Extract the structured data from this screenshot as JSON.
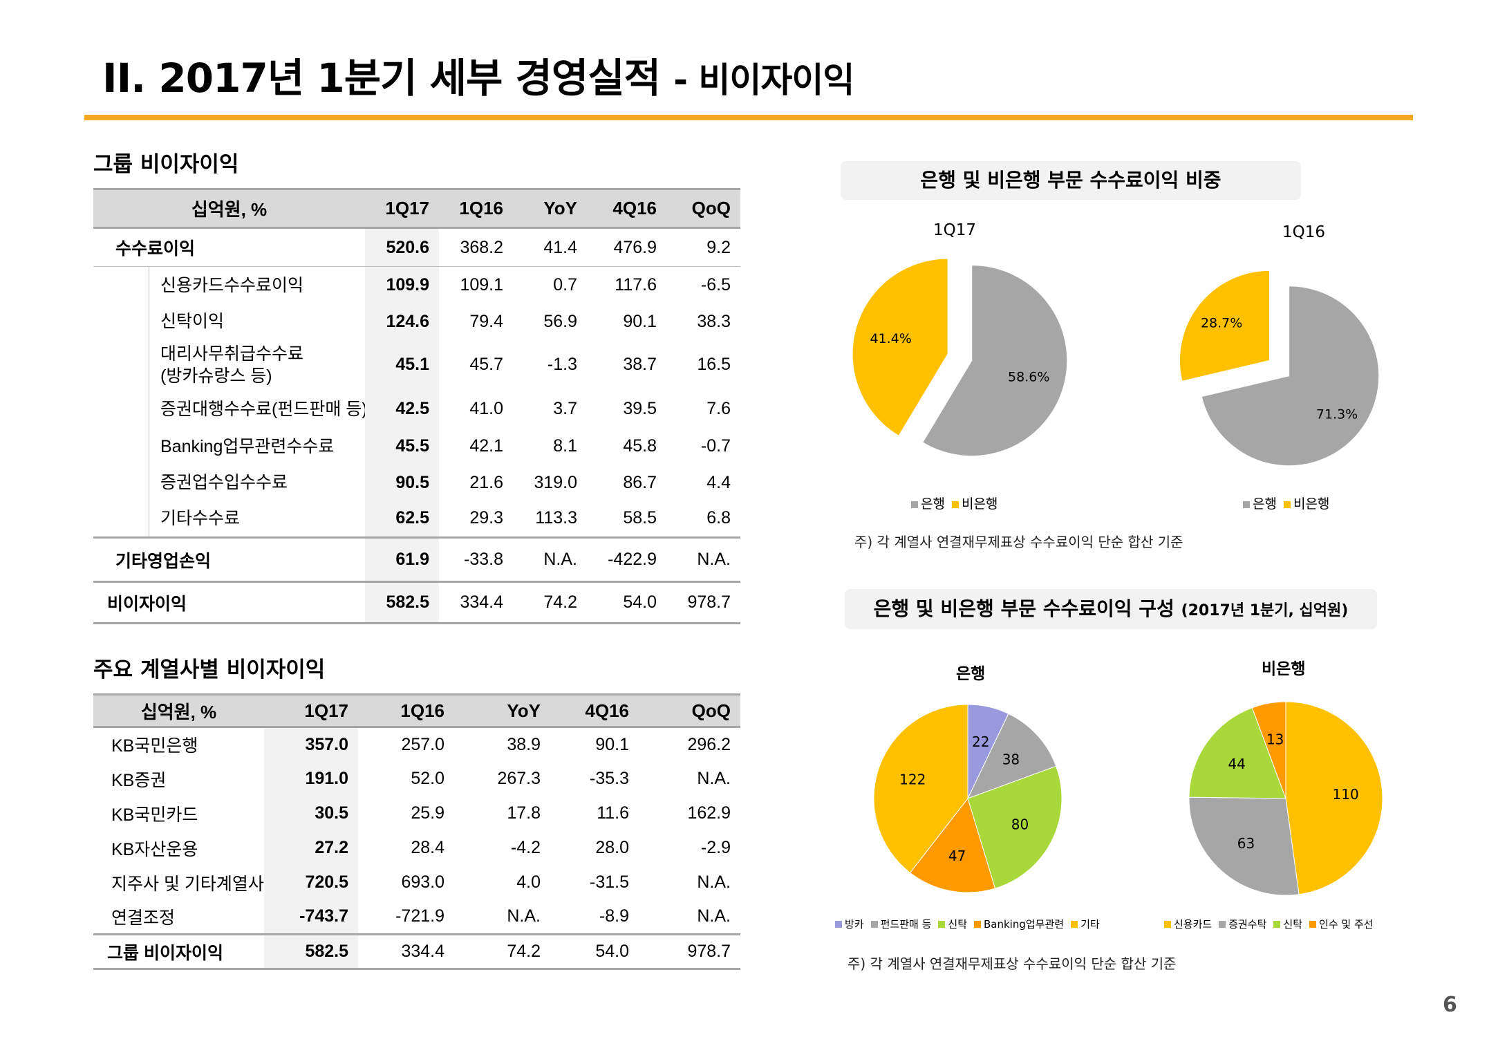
{
  "header": {
    "title_main": "II. 2017년 1분기 세부 경영실적",
    "title_sub": "- 비이자이익",
    "page_number": "6"
  },
  "table1": {
    "section_title": "그룹 비이자이익",
    "columns": [
      "십억원, %",
      "1Q17",
      "1Q16",
      "YoY",
      "4Q16",
      "QoQ"
    ],
    "rows": [
      {
        "label": "수수료이익",
        "values": [
          "520.6",
          "368.2",
          "41.4",
          "476.9",
          "9.2"
        ]
      },
      {
        "label": "신용카드수수료이익",
        "values": [
          "109.9",
          "109.1",
          "0.7",
          "117.6",
          "-6.5"
        ]
      },
      {
        "label": "신탁이익",
        "values": [
          "124.6",
          "79.4",
          "56.9",
          "90.1",
          "38.3"
        ]
      },
      {
        "label": "대리사무취급수수료",
        "label2": "(방카슈랑스 등)",
        "values": [
          "45.1",
          "45.7",
          "-1.3",
          "38.7",
          "16.5"
        ]
      },
      {
        "label": "증권대행수수료(펀드판매 등)",
        "values": [
          "42.5",
          "41.0",
          "3.7",
          "39.5",
          "7.6"
        ]
      },
      {
        "label": "Banking업무관련수수료",
        "values": [
          "45.5",
          "42.1",
          "8.1",
          "45.8",
          "-0.7"
        ]
      },
      {
        "label": "증권업수입수수료",
        "values": [
          "90.5",
          "21.6",
          "319.0",
          "86.7",
          "4.4"
        ]
      },
      {
        "label": "기타수수료",
        "values": [
          "62.5",
          "29.3",
          "113.3",
          "58.5",
          "6.8"
        ]
      },
      {
        "label": "기타영업손익",
        "values": [
          "61.9",
          "-33.8",
          "N.A.",
          "-422.9",
          "N.A."
        ]
      },
      {
        "label": "비이자이익",
        "values": [
          "582.5",
          "334.4",
          "74.2",
          "54.0",
          "978.7"
        ]
      }
    ]
  },
  "table2": {
    "section_title": "주요 계열사별 비이자이익",
    "columns": [
      "십억원, %",
      "1Q17",
      "1Q16",
      "YoY",
      "4Q16",
      "QoQ"
    ],
    "rows": [
      {
        "label": "KB국민은행",
        "values": [
          "357.0",
          "257.0",
          "38.9",
          "90.1",
          "296.2"
        ]
      },
      {
        "label": "KB증권",
        "values": [
          "191.0",
          "52.0",
          "267.3",
          "-35.3",
          "N.A."
        ]
      },
      {
        "label": "KB국민카드",
        "values": [
          "30.5",
          "25.9",
          "17.8",
          "11.6",
          "162.9"
        ]
      },
      {
        "label": "KB자산운용",
        "values": [
          "27.2",
          "28.4",
          "-4.2",
          "28.0",
          "-2.9"
        ]
      },
      {
        "label": "지주사 및 기타계열사",
        "values": [
          "720.5",
          "693.0",
          "4.0",
          "-31.5",
          "N.A."
        ]
      },
      {
        "label": "연결조정",
        "values": [
          "-743.7",
          "-721.9",
          "N.A.",
          "-8.9",
          "N.A."
        ]
      },
      {
        "label": "그룹 비이자이익",
        "values": [
          "582.5",
          "334.4",
          "74.2",
          "54.0",
          "978.7"
        ]
      }
    ]
  },
  "chart_panel1": {
    "title": "은행 및 비은행 부문 수수료이익 비중",
    "note": "주) 각 계열사 연결재무제표상 수수료이익 단순 합산 기준"
  },
  "chart_panel2": {
    "title": "은행 및 비은행 부문 수수료이익 구성",
    "title_suffix": "(2017년 1분기, 십억원)",
    "note": "주) 각 계열사 연결재무제표상 수수료이익 단순 합산 기준"
  },
  "chart_data": [
    {
      "type": "pie",
      "title": "1Q17",
      "series": [
        {
          "name": "은행",
          "value": 58.6,
          "label": "58.6%",
          "color": "#a6a6a6"
        },
        {
          "name": "비은행",
          "value": 41.4,
          "label": "41.4%",
          "color": "#ffc000"
        }
      ],
      "legend": [
        "은행",
        "비은행"
      ]
    },
    {
      "type": "pie",
      "title": "1Q16",
      "series": [
        {
          "name": "은행",
          "value": 71.3,
          "label": "71.3%",
          "color": "#a6a6a6"
        },
        {
          "name": "비은행",
          "value": 28.7,
          "label": "28.7%",
          "color": "#ffc000"
        }
      ],
      "legend": [
        "은행",
        "비은행"
      ]
    },
    {
      "type": "pie",
      "title": "은행",
      "series": [
        {
          "name": "방카",
          "value": 22,
          "label": "22",
          "color": "#9999dd"
        },
        {
          "name": "펀드판매 등",
          "value": 38,
          "label": "38",
          "color": "#a6a6a6"
        },
        {
          "name": "신탁",
          "value": 80,
          "label": "80",
          "color": "#a9d83a"
        },
        {
          "name": "Banking업무관련",
          "value": 47,
          "label": "47",
          "color": "#ff9900"
        },
        {
          "name": "기타",
          "value": 122,
          "label": "122",
          "color": "#ffc000"
        }
      ],
      "legend": [
        "방카",
        "펀드판매 등",
        "신탁",
        "Banking업무관련",
        "기타"
      ]
    },
    {
      "type": "pie",
      "title": "비은행",
      "series": [
        {
          "name": "신용카드",
          "value": 110,
          "label": "110",
          "color": "#ffc000"
        },
        {
          "name": "증권수탁",
          "value": 63,
          "label": "63",
          "color": "#a6a6a6"
        },
        {
          "name": "신탁",
          "value": 44,
          "label": "44",
          "color": "#a9d83a"
        },
        {
          "name": "인수 및 주선",
          "value": 13,
          "label": "13",
          "color": "#ff9900"
        }
      ],
      "legend": [
        "신용카드",
        "증권수탁",
        "신탁",
        "인수 및 주선"
      ]
    }
  ]
}
